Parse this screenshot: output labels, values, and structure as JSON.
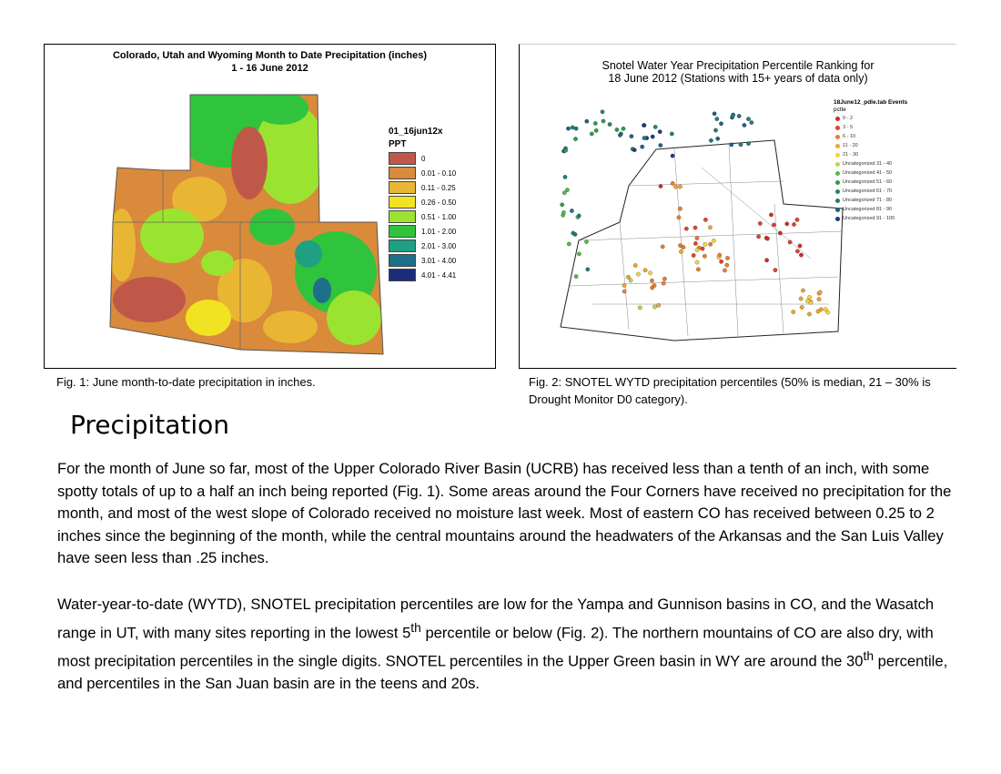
{
  "fig1": {
    "title_line1": "Colorado, Utah and Wyoming Month to Date Precipitation (inches)",
    "title_line2": "1 - 16 June 2012",
    "legend_title": "01_16jun12x",
    "legend_subtitle": "PPT",
    "legend": [
      {
        "label": "0",
        "color": "#c0584a"
      },
      {
        "label": "0.01 - 0.10",
        "color": "#d98a3a"
      },
      {
        "label": "0.11 - 0.25",
        "color": "#e9b634"
      },
      {
        "label": "0.26 - 0.50",
        "color": "#f2e322"
      },
      {
        "label": "0.51 - 1.00",
        "color": "#9be331"
      },
      {
        "label": "1.01 - 2.00",
        "color": "#2fc43c"
      },
      {
        "label": "2.01 - 3.00",
        "color": "#1fa082"
      },
      {
        "label": "3.01 - 4.00",
        "color": "#1e6f8a"
      },
      {
        "label": "4.01 - 4.41",
        "color": "#1b2d7a"
      }
    ]
  },
  "fig2": {
    "title_line1": "Snotel Water Year Precipitation Percentile Ranking for",
    "title_line2": "18 June 2012 (Stations with 15+ years of data only)",
    "legend_title": "18June12_pdle.tab Events",
    "legend_subtitle": "pctle",
    "legend": [
      {
        "label": "0 - 2",
        "color": "#d42a1e"
      },
      {
        "label": "3 - 5",
        "color": "#e2412a"
      },
      {
        "label": "6 - 10",
        "color": "#ee7b2a"
      },
      {
        "label": "11 - 20",
        "color": "#f2a52f"
      },
      {
        "label": "21 - 30",
        "color": "#f6d636"
      },
      {
        "label": "Uncategorized 31 - 40",
        "color": "#b8d944"
      },
      {
        "label": "Uncategorized 41 - 50",
        "color": "#55b94a"
      },
      {
        "label": "Uncategorized 51 - 60",
        "color": "#2d9c4a"
      },
      {
        "label": "Uncategorized 61 - 70",
        "color": "#1e8a5a"
      },
      {
        "label": "Uncategorized 71 - 80",
        "color": "#1f7a7a"
      },
      {
        "label": "Uncategorized 81 - 90",
        "color": "#1f5f86"
      },
      {
        "label": "Uncategorized 91 - 100",
        "color": "#1d3d7a"
      }
    ]
  },
  "captions": {
    "fig1": "Fig. 1:  June month-to-date precipitation in inches.",
    "fig2": "Fig. 2:  SNOTEL WYTD precipitation percentiles (50% is median, 21 – 30% is Drought Monitor D0 category)."
  },
  "heading": "Precipitation",
  "paragraph1": "For the month of June so far, most of the Upper Colorado River Basin (UCRB) has received less than a tenth of an inch, with some spotty totals of up to a half an inch being reported (Fig. 1).  Some areas around the Four Corners have received no precipitation for the month, and most of the west slope of Colorado received no moisture last week.  Most of eastern CO has received between 0.25 to 2 inches since the beginning of the month, while the central mountains around the headwaters of the Arkansas and the San Luis Valley have seen less than .25 inches.",
  "paragraph2": {
    "part1": "Water-year-to-date (WYTD), SNOTEL precipitation percentiles are low for the Yampa and Gunnison basins in CO, and the Wasatch range in UT, with many sites reporting in the lowest 5",
    "sup1": "th",
    "part2": " percentile or below (Fig. 2). The northern mountains of CO are also dry, with most precipitation percentiles in the single digits.  SNOTEL percentiles in the Upper Green basin in WY are around the 30",
    "sup2": "th",
    "part3": " percentile, and percentiles in the San Juan basin are in the teens and 20s."
  }
}
